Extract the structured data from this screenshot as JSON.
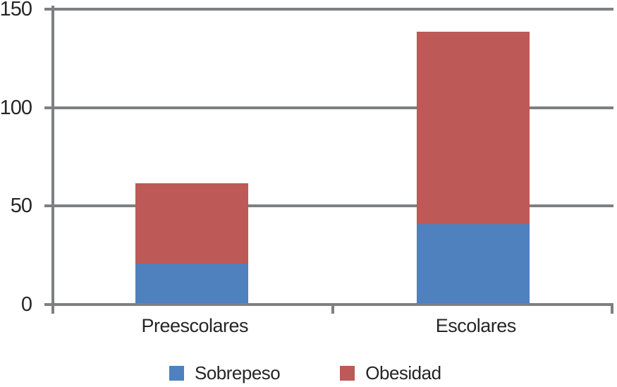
{
  "chart_data": {
    "type": "bar",
    "stacked": true,
    "orientation": "vertical",
    "categories": [
      "Preescolares",
      "Escolares"
    ],
    "series": [
      {
        "name": "Sobrepeso",
        "color": "#4E81BD",
        "values": [
          20,
          40
        ]
      },
      {
        "name": "Obesidad",
        "color": "#BD5956",
        "values": [
          41,
          98
        ]
      }
    ],
    "totals": [
      61,
      138
    ],
    "yticks": [
      "0",
      "50",
      "100",
      "150"
    ],
    "ytick_values": [
      0,
      50,
      100,
      150
    ],
    "ylim": [
      0,
      150
    ],
    "xlabel": "",
    "ylabel": "",
    "title": "",
    "grid": true,
    "legend_position": "bottom"
  },
  "colors": {
    "axis": "#7D7F81",
    "text": "#262626",
    "background": "#FFFFFF",
    "sobrepeso": "#4E81BD",
    "obesidad": "#BD5956"
  },
  "legend": {
    "items": [
      {
        "label": "Sobrepeso"
      },
      {
        "label": "Obesidad"
      }
    ]
  }
}
